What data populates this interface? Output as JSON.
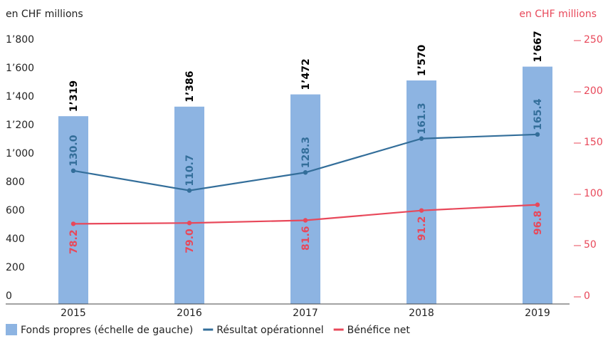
{
  "chart_data": {
    "type": "bar_line",
    "y_label": "en CHF millions",
    "y2_label": "en CHF millions",
    "categories": [
      "2015",
      "2016",
      "2017",
      "2018",
      "2019"
    ],
    "series": [
      {
        "name": "Fonds propres (échelle de gauche)",
        "type": "bar",
        "color": "#8db4e2",
        "values": [
          1319,
          1386,
          1472,
          1570,
          1667
        ],
        "value_labels": [
          "1’319",
          "1’386",
          "1’472",
          "1’570",
          "1’667"
        ]
      },
      {
        "name": "Résultat opérationnel",
        "type": "line",
        "axis": "y2",
        "color": "#336e9a",
        "values": [
          130.0,
          110.7,
          128.3,
          161.3,
          165.4
        ],
        "value_labels": [
          "130.0",
          "110.7",
          "128.3",
          "161.3",
          "165.4"
        ]
      },
      {
        "name": "Bénéfice net",
        "type": "line",
        "axis": "y2",
        "color": "#e8485a",
        "values": [
          78.2,
          79.0,
          81.6,
          91.2,
          96.8
        ],
        "value_labels": [
          "78.2",
          "79.0",
          "81.6",
          "91.2",
          "96.8"
        ]
      }
    ],
    "ylim": [
      0,
      1800
    ],
    "yticks": [
      0,
      200,
      400,
      600,
      800,
      {
        "value": 1000,
        "label": "1’000"
      },
      {
        "value": 1200,
        "label": "1’200"
      },
      {
        "value": 1400,
        "label": "1’400"
      },
      {
        "value": 1600,
        "label": "1’600"
      },
      {
        "value": 1800,
        "label": "1’800"
      }
    ],
    "y2lim": [
      0,
      250
    ],
    "y2ticks": [
      0,
      50,
      100,
      150,
      200,
      250
    ],
    "y2_color": "#e8485a"
  }
}
